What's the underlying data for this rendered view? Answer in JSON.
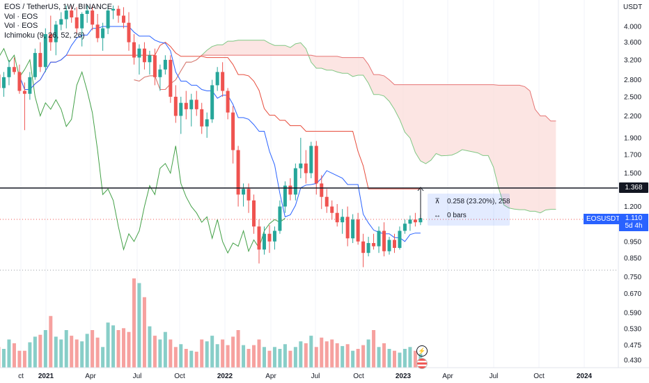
{
  "legend": {
    "symbol_line": "EOS / TetherUS, 1W, BINANCE",
    "vol1": "Vol · EOS",
    "vol2": "Vol · EOS",
    "ichimoku": "Ichimoku (9, 26, 52, 26)"
  },
  "axis": {
    "currency": "USDT",
    "ticks": [
      "4.000",
      "3.600",
      "3.200",
      "2.800",
      "2.500",
      "2.200",
      "1.900",
      "1.700",
      "1.500",
      "1.200",
      "0.950",
      "0.850",
      "0.750",
      "0.670",
      "0.590",
      "0.530",
      "0.475",
      "0.430"
    ],
    "x_labels": [
      "ct",
      "2021",
      "Apr",
      "Jul",
      "Oct",
      "2022",
      "Apr",
      "Jul",
      "Oct",
      "2023",
      "Apr",
      "Jul",
      "Oct",
      "2024"
    ]
  },
  "horizontal_line": {
    "price_label": "1.368"
  },
  "last_price": {
    "symbol": "EOSUSDT",
    "price": "1.110",
    "countdown": "5d 4h"
  },
  "measure": {
    "change_text": "0.258 (23.20%), 258",
    "bars_text": "0 bars"
  },
  "colors": {
    "up": "#26a69a",
    "down": "#ef5350",
    "baseline": "#2962ff",
    "conversion": "#2962ff",
    "base_line": "#e74c3c",
    "lagging": "#43a047",
    "cloud_bear": "#fbdcd9",
    "cloud_bull": "#d4edda",
    "hline": "#131722"
  },
  "chart_data": {
    "type": "candlestick",
    "title": "EOS / TetherUS, 1W, BINANCE",
    "ylabel": "USDT",
    "y_scale": "log",
    "ylim": [
      0.43,
      4.6
    ],
    "series": [
      {
        "name": "EOS / TetherUS",
        "ohlc": [
          [
            2.9,
            3.05,
            2.55,
            2.65
          ],
          [
            2.65,
            2.95,
            2.5,
            2.85
          ],
          [
            2.85,
            3.2,
            2.7,
            3.05
          ],
          [
            3.05,
            3.25,
            2.9,
            2.95
          ],
          [
            2.95,
            3.1,
            2.55,
            2.6
          ],
          [
            2.6,
            2.75,
            2.0,
            2.55
          ],
          [
            2.55,
            2.95,
            2.45,
            2.85
          ],
          [
            2.85,
            3.45,
            2.8,
            3.35
          ],
          [
            3.35,
            3.6,
            2.95,
            3.05
          ],
          [
            3.05,
            3.95,
            2.95,
            3.8
          ],
          [
            3.8,
            4.3,
            3.4,
            3.6
          ],
          [
            3.6,
            4.15,
            3.3,
            4.05
          ],
          [
            4.05,
            4.4,
            3.9,
            4.2
          ],
          [
            4.2,
            4.6,
            3.95,
            4.45
          ],
          [
            4.45,
            4.6,
            4.1,
            4.25
          ],
          [
            4.25,
            4.55,
            3.8,
            3.95
          ],
          [
            3.95,
            4.4,
            3.5,
            4.35
          ],
          [
            4.35,
            4.6,
            4.1,
            4.45
          ],
          [
            4.45,
            4.6,
            3.9,
            4.05
          ],
          [
            4.05,
            4.35,
            3.6,
            3.7
          ],
          [
            3.7,
            4.1,
            3.4,
            3.95
          ],
          [
            3.95,
            4.6,
            3.8,
            4.45
          ],
          [
            4.45,
            4.6,
            4.2,
            4.5
          ],
          [
            4.5,
            4.6,
            4.1,
            4.3
          ],
          [
            4.3,
            4.55,
            3.95,
            4.1
          ],
          [
            4.1,
            4.4,
            3.4,
            3.6
          ],
          [
            3.6,
            3.8,
            3.1,
            3.25
          ],
          [
            3.25,
            3.55,
            2.9,
            3.45
          ],
          [
            3.45,
            3.6,
            3.0,
            3.15
          ],
          [
            3.15,
            3.4,
            2.9,
            3.3
          ],
          [
            3.3,
            3.45,
            2.7,
            2.85
          ],
          [
            2.85,
            3.1,
            2.6,
            3.0
          ],
          [
            3.0,
            3.3,
            2.9,
            3.2
          ],
          [
            3.2,
            3.3,
            2.4,
            2.5
          ],
          [
            2.5,
            2.7,
            2.1,
            2.2
          ],
          [
            2.2,
            2.5,
            1.95,
            2.4
          ],
          [
            2.4,
            2.6,
            2.15,
            2.3
          ],
          [
            2.3,
            2.55,
            2.05,
            2.45
          ],
          [
            2.45,
            2.6,
            2.2,
            2.3
          ],
          [
            2.3,
            2.4,
            1.95,
            2.05
          ],
          [
            2.05,
            2.25,
            1.9,
            2.15
          ],
          [
            2.15,
            2.8,
            2.1,
            2.7
          ],
          [
            2.7,
            3.05,
            2.6,
            2.95
          ],
          [
            2.95,
            3.15,
            2.5,
            2.6
          ],
          [
            2.6,
            2.65,
            2.15,
            2.25
          ],
          [
            2.25,
            2.35,
            1.6,
            1.75
          ],
          [
            1.75,
            1.8,
            1.2,
            1.3
          ],
          [
            1.3,
            1.4,
            1.2,
            1.35
          ],
          [
            1.35,
            1.4,
            1.15,
            1.25
          ],
          [
            1.25,
            1.3,
            1.0,
            1.05
          ],
          [
            1.05,
            1.1,
            0.82,
            0.9
          ],
          [
            0.9,
            1.05,
            0.87,
            1.0
          ],
          [
            1.0,
            1.06,
            0.88,
            0.95
          ],
          [
            0.95,
            1.05,
            0.9,
            1.02
          ],
          [
            1.02,
            1.25,
            1.0,
            1.2
          ],
          [
            1.2,
            1.42,
            1.15,
            1.38
          ],
          [
            1.38,
            1.45,
            1.25,
            1.3
          ],
          [
            1.3,
            1.6,
            1.25,
            1.55
          ],
          [
            1.55,
            1.9,
            1.45,
            1.6
          ],
          [
            1.6,
            1.75,
            1.4,
            1.5
          ],
          [
            1.5,
            1.85,
            1.45,
            1.8
          ],
          [
            1.8,
            1.86,
            1.3,
            1.4
          ],
          [
            1.4,
            1.48,
            1.18,
            1.28
          ],
          [
            1.28,
            1.35,
            1.15,
            1.2
          ],
          [
            1.2,
            1.25,
            1.1,
            1.15
          ],
          [
            1.15,
            1.22,
            1.05,
            1.08
          ],
          [
            1.08,
            1.18,
            1.0,
            1.12
          ],
          [
            1.12,
            1.2,
            0.92,
            0.97
          ],
          [
            0.97,
            1.14,
            0.94,
            1.1
          ],
          [
            1.1,
            1.15,
            0.93,
            0.95
          ],
          [
            0.95,
            1.0,
            0.8,
            0.88
          ],
          [
            0.88,
            0.98,
            0.86,
            0.94
          ],
          [
            0.94,
            1.0,
            0.9,
            0.92
          ],
          [
            0.92,
            1.05,
            0.88,
            1.02
          ],
          [
            1.02,
            1.08,
            0.86,
            0.89
          ],
          [
            0.89,
            0.98,
            0.87,
            0.96
          ],
          [
            0.96,
            1.0,
            0.88,
            0.91
          ],
          [
            0.91,
            1.05,
            0.9,
            1.02
          ],
          [
            1.02,
            1.1,
            1.0,
            1.07
          ],
          [
            1.07,
            1.13,
            1.02,
            1.1
          ],
          [
            1.1,
            1.15,
            1.05,
            1.08
          ],
          [
            1.08,
            1.14,
            1.06,
            1.11
          ]
        ]
      },
      {
        "name": "Vol · EOS",
        "volume": [
          0.22,
          0.2,
          0.3,
          0.26,
          0.18,
          0.18,
          0.27,
          0.33,
          0.35,
          0.4,
          0.55,
          0.33,
          0.3,
          0.4,
          0.34,
          0.3,
          0.28,
          0.36,
          0.4,
          0.32,
          0.22,
          0.48,
          0.45,
          0.4,
          0.42,
          0.38,
          0.95,
          0.9,
          0.75,
          0.44,
          0.34,
          0.3,
          0.38,
          0.3,
          0.22,
          0.25,
          0.2,
          0.18,
          0.17,
          0.3,
          0.28,
          0.34,
          0.25,
          0.3,
          0.24,
          0.33,
          0.4,
          0.24,
          0.2,
          0.24,
          0.3,
          0.22,
          0.18,
          0.22,
          0.2,
          0.25,
          0.18,
          0.22,
          0.28,
          0.26,
          0.34,
          0.22,
          0.32,
          0.28,
          0.3,
          0.26,
          0.23,
          0.25,
          0.18,
          0.2,
          0.24,
          0.3,
          0.4,
          0.22,
          0.26,
          0.2,
          0.18,
          0.16,
          0.2,
          0.22,
          0.18,
          0.15
        ]
      }
    ]
  }
}
